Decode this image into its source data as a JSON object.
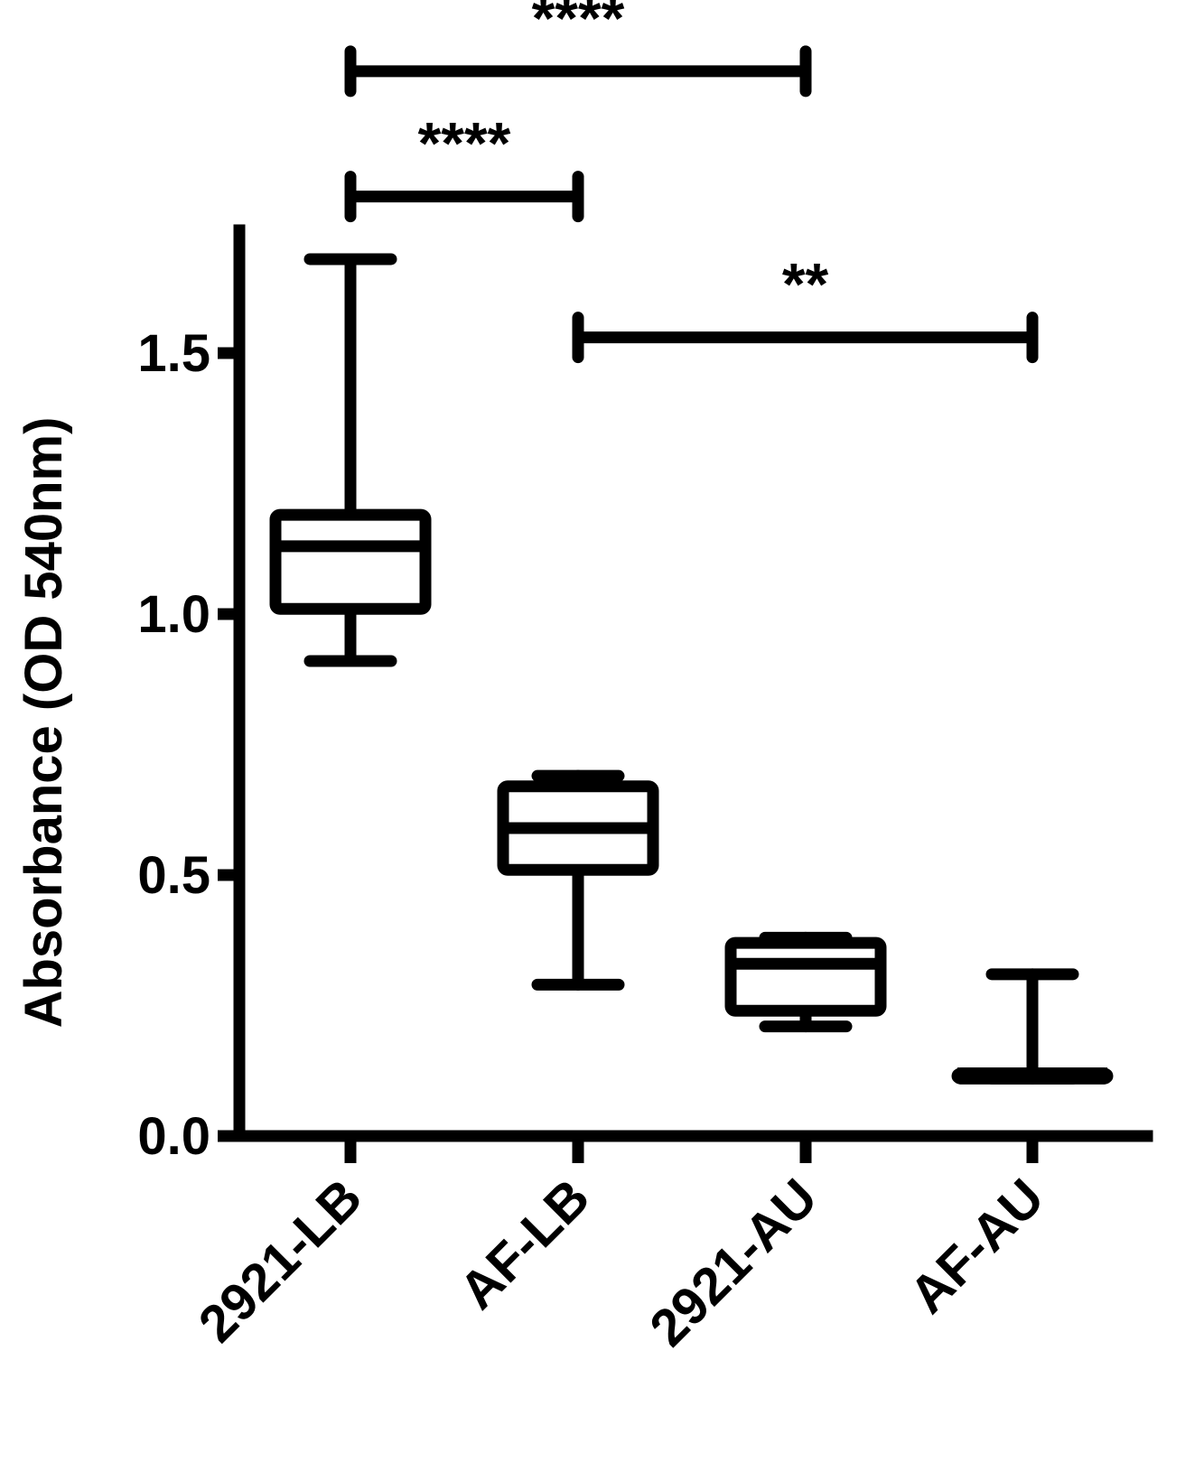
{
  "chart_data": {
    "type": "box",
    "ylabel": "Absorbance (OD 540nm)",
    "xlabel": "",
    "ylim": [
      0,
      1.75
    ],
    "yticks": [
      {
        "value": 0.0,
        "label": "0.0"
      },
      {
        "value": 0.5,
        "label": "0.5"
      },
      {
        "value": 1.0,
        "label": "1.0"
      },
      {
        "value": 1.5,
        "label": "1.5"
      }
    ],
    "categories": [
      "2921-LB",
      "AF-LB",
      "2921-AU",
      "AF-AU"
    ],
    "boxes": [
      {
        "category": "2921-LB",
        "min": 0.91,
        "q1": 1.01,
        "median": 1.13,
        "q3": 1.19,
        "max": 1.68
      },
      {
        "category": "AF-LB",
        "min": 0.29,
        "q1": 0.51,
        "median": 0.59,
        "q3": 0.67,
        "max": 0.69
      },
      {
        "category": "2921-AU",
        "min": 0.21,
        "q1": 0.24,
        "median": 0.33,
        "q3": 0.37,
        "max": 0.38
      },
      {
        "category": "AF-AU",
        "min": 0.11,
        "q1": 0.11,
        "median": 0.12,
        "q3": 0.12,
        "max": 0.31
      }
    ],
    "significance": [
      {
        "from": "2921-LB",
        "to": "2921-AU",
        "label": "****",
        "y": 2.04
      },
      {
        "from": "2921-LB",
        "to": "AF-LB",
        "label": "****",
        "y": 1.8
      },
      {
        "from": "AF-LB",
        "to": "AF-AU",
        "label": "**",
        "y": 1.53
      }
    ],
    "grid": false,
    "legend": "none"
  }
}
